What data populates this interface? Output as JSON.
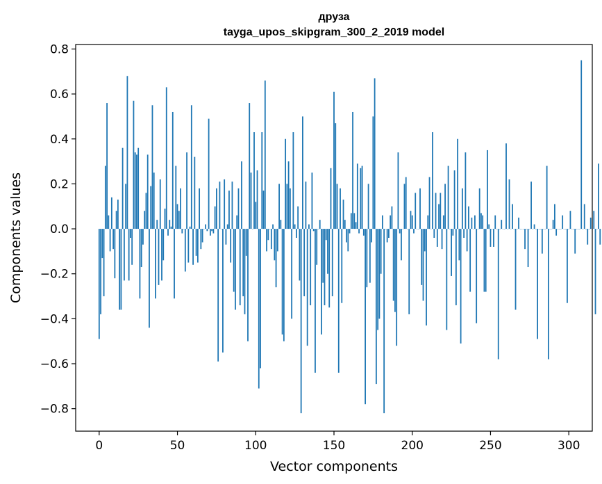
{
  "chart_data": {
    "type": "bar",
    "title": "друза",
    "subtitle": "tayga_upos_skipgram_300_2_2019 model",
    "xlabel": "Vector components",
    "ylabel": "Components values",
    "xlim": [
      -15,
      315
    ],
    "ylim": [
      -0.9,
      0.82
    ],
    "xticks": [
      0,
      50,
      100,
      150,
      200,
      250,
      300
    ],
    "xtick_labels": [
      "0",
      "50",
      "100",
      "150",
      "200",
      "250",
      "300"
    ],
    "yticks": [
      -0.8,
      -0.6,
      -0.4,
      -0.2,
      0.0,
      0.2,
      0.4,
      0.6,
      0.8
    ],
    "ytick_labels": [
      "−0.8",
      "−0.6",
      "−0.4",
      "−0.2",
      "0.0",
      "0.2",
      "0.4",
      "0.6",
      "0.8"
    ],
    "grid": false,
    "bar_color": "#1f77b4",
    "values": [
      -0.49,
      -0.38,
      -0.13,
      -0.3,
      0.28,
      0.56,
      0.06,
      -0.1,
      0.14,
      -0.09,
      -0.22,
      0.08,
      0.13,
      -0.36,
      -0.36,
      0.36,
      -0.23,
      0.2,
      0.68,
      -0.23,
      -0.04,
      -0.16,
      0.57,
      0.34,
      0.33,
      0.36,
      -0.31,
      -0.17,
      -0.07,
      0.08,
      0.16,
      0.33,
      -0.44,
      0.19,
      0.55,
      0.25,
      -0.31,
      0.04,
      -0.25,
      0.22,
      -0.23,
      -0.14,
      0.09,
      0.63,
      -0.03,
      0.04,
      0.01,
      0.52,
      -0.31,
      0.28,
      0.11,
      0.08,
      0.18,
      -0.02,
      0.0,
      -0.19,
      0.34,
      -0.15,
      0.01,
      0.55,
      -0.16,
      0.32,
      -0.12,
      -0.15,
      0.18,
      -0.09,
      -0.06,
      0.0,
      0.02,
      -0.01,
      0.49,
      -0.03,
      -0.01,
      -0.02,
      0.1,
      0.18,
      -0.59,
      0.21,
      0.0,
      -0.55,
      0.22,
      -0.07,
      0.02,
      0.17,
      -0.15,
      0.21,
      -0.28,
      -0.36,
      0.06,
      0.18,
      -0.34,
      0.3,
      -0.3,
      -0.38,
      -0.12,
      -0.5,
      0.56,
      0.25,
      0.0,
      0.43,
      0.12,
      0.26,
      -0.71,
      -0.62,
      0.43,
      0.17,
      0.66,
      -0.1,
      -0.05,
      0.0,
      -0.09,
      0.02,
      -0.14,
      -0.26,
      -0.1,
      0.2,
      0.04,
      -0.47,
      -0.5,
      0.4,
      0.2,
      0.3,
      0.18,
      -0.4,
      0.43,
      0.02,
      -0.04,
      0.1,
      -0.23,
      -0.82,
      0.5,
      -0.3,
      0.21,
      -0.52,
      0.02,
      -0.34,
      0.25,
      -0.01,
      -0.64,
      -0.16,
      0.0,
      0.04,
      -0.47,
      -0.24,
      -0.34,
      -0.05,
      -0.2,
      -0.35,
      0.27,
      -0.3,
      0.61,
      0.47,
      0.2,
      -0.64,
      0.18,
      -0.33,
      0.13,
      0.04,
      -0.06,
      -0.1,
      -0.02,
      0.07,
      0.52,
      0.07,
      0.03,
      0.29,
      -0.02,
      0.27,
      0.28,
      -0.03,
      -0.78,
      -0.26,
      0.2,
      -0.24,
      -0.06,
      0.5,
      0.67,
      -0.69,
      -0.45,
      -0.4,
      -0.2,
      0.06,
      -0.82,
      0.0,
      -0.06,
      -0.04,
      0.06,
      0.1,
      -0.32,
      -0.37,
      -0.52,
      0.34,
      -0.02,
      -0.14,
      0.0,
      0.2,
      0.23,
      0.0,
      -0.38,
      0.08,
      0.06,
      -0.02,
      0.16,
      0.0,
      0.0,
      0.18,
      -0.25,
      -0.32,
      -0.1,
      -0.43,
      0.06,
      0.23,
      0.0,
      0.43,
      -0.04,
      0.16,
      -0.08,
      0.11,
      0.16,
      -0.09,
      0.06,
      0.2,
      -0.45,
      0.28,
      0.0,
      -0.21,
      -0.03,
      0.26,
      -0.34,
      0.4,
      -0.14,
      -0.51,
      0.18,
      -0.04,
      0.34,
      -0.1,
      0.1,
      -0.28,
      0.05,
      0.0,
      0.06,
      -0.42,
      0.0,
      0.18,
      0.07,
      0.06,
      -0.28,
      -0.28,
      0.35,
      0.02,
      -0.08,
      0.0,
      -0.08,
      0.06,
      0.0,
      -0.58,
      0.0,
      0.04,
      0.0,
      0.0,
      0.38,
      0.0,
      0.22,
      0.0,
      0.11,
      0.0,
      -0.36,
      0.0,
      0.05,
      0.0,
      0.0,
      0.0,
      -0.09,
      0.0,
      -0.17,
      0.0,
      0.21,
      0.0,
      0.02,
      0.0,
      -0.49,
      0.0,
      0.0,
      -0.11,
      0.0,
      0.0,
      0.28,
      -0.58,
      0.0,
      0.0,
      0.04,
      0.11,
      -0.03,
      0.0,
      0.0,
      0.0,
      0.06,
      0.0,
      0.0,
      -0.33,
      0.0,
      0.08,
      0.0,
      0.0,
      -0.11,
      0.0,
      0.0,
      0.0,
      0.75,
      0.0,
      0.11,
      0.0,
      -0.07,
      0.0,
      0.05,
      0.0,
      0.08,
      -0.38,
      0.0,
      0.29,
      -0.07
    ]
  }
}
